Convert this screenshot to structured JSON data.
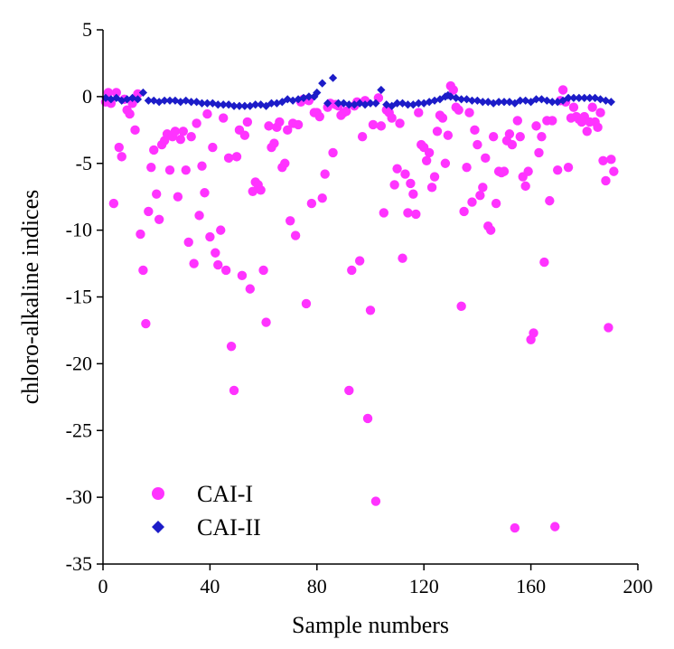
{
  "chart_data": {
    "type": "scatter",
    "title": "",
    "xlabel": "Sample numbers",
    "ylabel": "chloro-alkaline indices",
    "xlim": [
      0,
      200
    ],
    "ylim": [
      -35,
      5
    ],
    "xticks": [
      0,
      40,
      80,
      120,
      160,
      200
    ],
    "yticks": [
      5,
      0,
      -5,
      -10,
      -15,
      -20,
      -25,
      -30,
      -35
    ],
    "grid": false,
    "legend_position": "bottom-left",
    "series": [
      {
        "name": "CAI-I",
        "marker": "circle",
        "color": "#ff33ff",
        "x": [
          1,
          2,
          3,
          4,
          5,
          6,
          7,
          8,
          9,
          10,
          11,
          12,
          13,
          14,
          15,
          16,
          17,
          18,
          19,
          20,
          21,
          22,
          23,
          24,
          25,
          26,
          27,
          28,
          29,
          30,
          31,
          32,
          33,
          34,
          35,
          36,
          37,
          38,
          39,
          40,
          41,
          42,
          43,
          44,
          45,
          46,
          47,
          48,
          49,
          50,
          51,
          52,
          53,
          54,
          55,
          56,
          57,
          58,
          59,
          60,
          61,
          62,
          63,
          64,
          65,
          66,
          67,
          68,
          69,
          70,
          71,
          72,
          73,
          74,
          75,
          76,
          77,
          78,
          79,
          80,
          81,
          82,
          83,
          84,
          85,
          86,
          87,
          88,
          89,
          90,
          91,
          92,
          93,
          94,
          95,
          96,
          97,
          98,
          99,
          100,
          101,
          102,
          103,
          104,
          105,
          106,
          107,
          108,
          109,
          110,
          111,
          112,
          113,
          114,
          115,
          116,
          117,
          118,
          119,
          120,
          121,
          122,
          123,
          124,
          125,
          126,
          127,
          128,
          129,
          130,
          131,
          132,
          133,
          134,
          135,
          136,
          137,
          138,
          139,
          140,
          141,
          142,
          143,
          144,
          145,
          146,
          147,
          148,
          149,
          150,
          151,
          152,
          153,
          154,
          155,
          156,
          157,
          158,
          159,
          160,
          161,
          162,
          163,
          164,
          165,
          166,
          167,
          168,
          169,
          170,
          171,
          172,
          173,
          174,
          175,
          176,
          177,
          178,
          179,
          180,
          181,
          182,
          183,
          184,
          185,
          186,
          187,
          188,
          189,
          190,
          191
        ],
        "y": [
          -0.4,
          0.3,
          -0.5,
          -8.0,
          0.3,
          -3.8,
          -4.5,
          -0.2,
          -1.0,
          -1.3,
          -0.5,
          -2.5,
          0.2,
          -10.3,
          -13.0,
          -17.0,
          -8.6,
          -5.3,
          -4.0,
          -7.3,
          -9.2,
          -3.6,
          -3.3,
          -2.8,
          -5.5,
          -3.0,
          -2.6,
          -7.5,
          -3.2,
          -2.6,
          -5.5,
          -10.9,
          -3.0,
          -12.5,
          -2.0,
          -8.9,
          -5.2,
          -7.2,
          -1.3,
          -10.5,
          -3.8,
          -11.7,
          -12.6,
          -10.0,
          -1.6,
          -13.0,
          -4.6,
          -18.7,
          -22.0,
          -4.5,
          -2.5,
          -13.4,
          -2.9,
          -1.9,
          -14.4,
          -7.1,
          -6.4,
          -6.6,
          -7.0,
          -13.0,
          -16.9,
          -2.2,
          -3.8,
          -3.5,
          -2.3,
          -1.9,
          -5.3,
          -5.0,
          -2.5,
          -9.3,
          -2.0,
          -10.4,
          -2.1,
          -0.4,
          -0.2,
          -15.5,
          -0.3,
          -8.0,
          -1.2,
          -1.2,
          -1.5,
          -7.6,
          -5.8,
          -0.8,
          -0.5,
          -4.2,
          -0.6,
          -0.7,
          -1.4,
          -1.2,
          -1.1,
          -22.0,
          -13.0,
          -0.7,
          -0.4,
          -12.3,
          -3.0,
          -0.3,
          -24.1,
          -16.0,
          -2.1,
          -30.3,
          -0.1,
          -2.2,
          -8.7,
          -1.0,
          -1.2,
          -1.6,
          -6.6,
          -5.4,
          -2.0,
          -12.1,
          -5.8,
          -8.7,
          -6.5,
          -7.3,
          -8.8,
          -1.2,
          -3.6,
          -3.8,
          -4.8,
          -4.2,
          -6.8,
          -6.0,
          -2.6,
          -1.4,
          -1.6,
          -5.0,
          -2.9,
          0.8,
          0.5,
          -0.8,
          -1.0,
          -15.7,
          -8.6,
          -5.3,
          -1.2,
          -7.9,
          -2.5,
          -3.6,
          -7.4,
          -6.8,
          -4.6,
          -9.7,
          -10.0,
          -3.0,
          -8.0,
          -5.6,
          -5.7,
          -5.6,
          -3.3,
          -2.8,
          -3.6,
          -32.3,
          -1.8,
          -3.0,
          -6.0,
          -6.7,
          -5.6,
          -18.2,
          -17.7,
          -2.2,
          -4.2,
          -3.0,
          -12.4,
          -1.8,
          -7.8,
          -1.8,
          -32.2,
          -5.5,
          -0.3,
          0.5,
          -0.4,
          -5.3,
          -1.6,
          -0.8,
          -1.5,
          -1.7,
          -1.9,
          -1.5,
          -2.6,
          -1.9,
          -0.8,
          -1.9,
          -2.3,
          -1.2,
          -4.8,
          -6.3,
          -17.3,
          -4.7,
          -5.6
        ]
      },
      {
        "name": "CAI-II",
        "marker": "diamond",
        "color": "#1c1cc8",
        "x": [
          1,
          3,
          5,
          7,
          9,
          11,
          13,
          15,
          17,
          19,
          21,
          23,
          25,
          27,
          29,
          31,
          33,
          35,
          37,
          39,
          41,
          43,
          45,
          47,
          49,
          51,
          53,
          55,
          57,
          59,
          61,
          63,
          65,
          67,
          69,
          71,
          73,
          75,
          77,
          79,
          80,
          82,
          84,
          86,
          88,
          90,
          92,
          94,
          96,
          98,
          100,
          102,
          104,
          106,
          108,
          110,
          112,
          114,
          116,
          118,
          120,
          122,
          124,
          126,
          128,
          129,
          130,
          132,
          134,
          136,
          138,
          140,
          142,
          144,
          146,
          148,
          150,
          152,
          154,
          156,
          158,
          160,
          162,
          164,
          166,
          168,
          170,
          172,
          174,
          176,
          178,
          180,
          182,
          184,
          186,
          188,
          190
        ],
        "y": [
          -0.1,
          -0.2,
          -0.1,
          -0.3,
          -0.2,
          -0.1,
          -0.2,
          0.3,
          -0.3,
          -0.3,
          -0.4,
          -0.3,
          -0.3,
          -0.3,
          -0.4,
          -0.3,
          -0.4,
          -0.4,
          -0.5,
          -0.5,
          -0.5,
          -0.6,
          -0.6,
          -0.6,
          -0.7,
          -0.7,
          -0.7,
          -0.7,
          -0.6,
          -0.6,
          -0.7,
          -0.5,
          -0.5,
          -0.4,
          -0.2,
          -0.3,
          -0.2,
          -0.1,
          0.0,
          0.0,
          0.3,
          1.0,
          -0.5,
          1.4,
          -0.5,
          -0.5,
          -0.6,
          -0.6,
          -0.5,
          -0.6,
          -0.5,
          -0.5,
          0.5,
          -0.6,
          -0.7,
          -0.5,
          -0.5,
          -0.6,
          -0.6,
          -0.5,
          -0.5,
          -0.4,
          -0.3,
          -0.2,
          0.0,
          0.1,
          0.0,
          -0.1,
          -0.2,
          -0.2,
          -0.3,
          -0.3,
          -0.4,
          -0.4,
          -0.5,
          -0.4,
          -0.4,
          -0.4,
          -0.5,
          -0.3,
          -0.3,
          -0.4,
          -0.2,
          -0.2,
          -0.3,
          -0.4,
          -0.4,
          -0.3,
          -0.1,
          -0.1,
          -0.1,
          -0.1,
          -0.1,
          -0.1,
          -0.2,
          -0.3,
          -0.4
        ]
      }
    ]
  }
}
